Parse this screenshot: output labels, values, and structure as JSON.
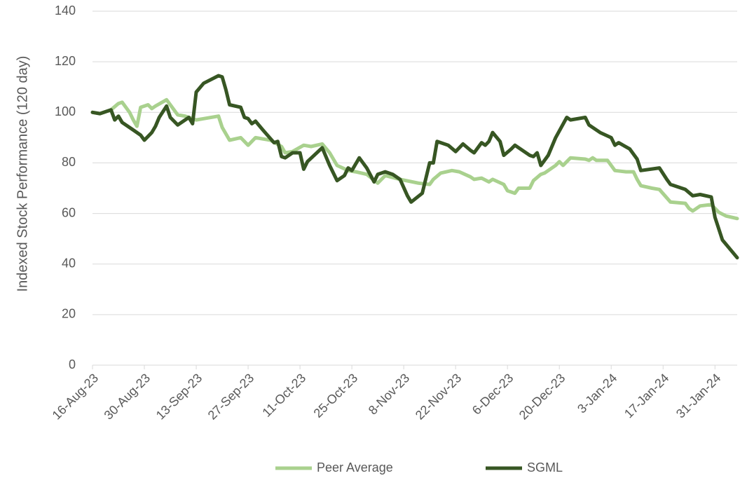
{
  "chart_data": {
    "type": "line",
    "y_label": "Indexed Stock Performance (120 day)",
    "ylim": [
      0,
      140
    ],
    "yticks": [
      0,
      20,
      40,
      60,
      80,
      100,
      120,
      140
    ],
    "grid": true,
    "xlim": [
      "2023-08-16",
      "2024-02-06"
    ],
    "xticks": [
      {
        "value": "2023-08-16",
        "label": "16-Aug-23"
      },
      {
        "value": "2023-08-30",
        "label": "30-Aug-23"
      },
      {
        "value": "2023-09-13",
        "label": "13-Sep-23"
      },
      {
        "value": "2023-09-27",
        "label": "27-Sep-23"
      },
      {
        "value": "2023-10-11",
        "label": "11-Oct-23"
      },
      {
        "value": "2023-10-25",
        "label": "25-Oct-23"
      },
      {
        "value": "2023-11-08",
        "label": "8-Nov-23"
      },
      {
        "value": "2023-11-22",
        "label": "22-Nov-23"
      },
      {
        "value": "2023-12-06",
        "label": "6-Dec-23"
      },
      {
        "value": "2023-12-20",
        "label": "20-Dec-23"
      },
      {
        "value": "2024-01-03",
        "label": "3-Jan-24"
      },
      {
        "value": "2024-01-17",
        "label": "17-Jan-24"
      },
      {
        "value": "2024-01-31",
        "label": "31-Jan-24"
      }
    ],
    "legend": "bottom",
    "series": [
      {
        "name": "Peer Average",
        "color": "#a9d18e",
        "x": [
          "2023-08-16",
          "2023-08-18",
          "2023-08-21",
          "2023-08-23",
          "2023-08-24",
          "2023-08-26",
          "2023-08-27",
          "2023-08-28",
          "2023-08-29",
          "2023-08-31",
          "2023-09-01",
          "2023-09-02",
          "2023-09-05",
          "2023-09-06",
          "2023-09-08",
          "2023-09-10",
          "2023-09-13",
          "2023-09-15",
          "2023-09-19",
          "2023-09-20",
          "2023-09-22",
          "2023-09-25",
          "2023-09-27",
          "2023-09-29",
          "2023-10-03",
          "2023-10-06",
          "2023-10-07",
          "2023-10-09",
          "2023-10-12",
          "2023-10-14",
          "2023-10-17",
          "2023-10-19",
          "2023-10-21",
          "2023-10-24",
          "2023-10-26",
          "2023-10-29",
          "2023-11-01",
          "2023-11-03",
          "2023-11-07",
          "2023-11-12",
          "2023-11-15",
          "2023-11-16",
          "2023-11-18",
          "2023-11-21",
          "2023-11-23",
          "2023-11-26",
          "2023-11-27",
          "2023-11-29",
          "2023-12-01",
          "2023-12-02",
          "2023-12-05",
          "2023-12-06",
          "2023-12-08",
          "2023-12-09",
          "2023-12-12",
          "2023-12-13",
          "2023-12-15",
          "2023-12-16",
          "2023-12-19",
          "2023-12-20",
          "2023-12-21",
          "2023-12-23",
          "2023-12-27",
          "2023-12-28",
          "2023-12-29",
          "2023-12-30",
          "2024-01-02",
          "2024-01-04",
          "2024-01-07",
          "2024-01-09",
          "2024-01-10",
          "2024-01-11",
          "2024-01-14",
          "2024-01-16",
          "2024-01-19",
          "2024-01-23",
          "2024-01-24",
          "2024-01-25",
          "2024-01-27",
          "2024-01-30",
          "2024-02-01",
          "2024-02-03",
          "2024-02-06"
        ],
        "values": [
          100,
          99.5,
          101,
          103.5,
          104,
          100,
          97,
          94.5,
          102,
          103,
          101.5,
          102.5,
          105,
          103,
          99,
          98.5,
          97,
          97.5,
          98.5,
          94,
          89,
          90,
          87,
          90,
          89,
          86.5,
          84,
          84.5,
          87,
          86.5,
          87.5,
          84,
          79,
          77,
          76.5,
          75.5,
          72,
          75,
          73.5,
          72,
          71.5,
          73.5,
          76,
          77,
          76.5,
          74.5,
          73.5,
          74,
          72.5,
          73.5,
          71.5,
          69,
          68,
          70,
          70,
          73,
          75.5,
          76,
          79,
          80.5,
          79,
          82,
          81.5,
          81,
          82,
          81,
          81,
          77,
          76.5,
          76.5,
          73.5,
          71,
          70,
          69.5,
          64.5,
          64,
          62,
          61,
          63,
          63.5,
          60.5,
          59,
          58
        ]
      },
      {
        "name": "SGML",
        "color": "#375623",
        "x": [
          "2023-08-16",
          "2023-08-18",
          "2023-08-21",
          "2023-08-22",
          "2023-08-23",
          "2023-08-24",
          "2023-08-27",
          "2023-08-29",
          "2023-08-30",
          "2023-09-01",
          "2023-09-02",
          "2023-09-03",
          "2023-09-05",
          "2023-09-06",
          "2023-09-08",
          "2023-09-11",
          "2023-09-12",
          "2023-09-13",
          "2023-09-15",
          "2023-09-19",
          "2023-09-20",
          "2023-09-21",
          "2023-09-22",
          "2023-09-25",
          "2023-09-26",
          "2023-09-27",
          "2023-09-28",
          "2023-09-29",
          "2023-10-01",
          "2023-10-04",
          "2023-10-05",
          "2023-10-06",
          "2023-10-07",
          "2023-10-09",
          "2023-10-11",
          "2023-10-12",
          "2023-10-13",
          "2023-10-17",
          "2023-10-19",
          "2023-10-21",
          "2023-10-23",
          "2023-10-24",
          "2023-10-25",
          "2023-10-27",
          "2023-10-29",
          "2023-10-31",
          "2023-11-01",
          "2023-11-03",
          "2023-11-05",
          "2023-11-07",
          "2023-11-09",
          "2023-11-10",
          "2023-11-13",
          "2023-11-15",
          "2023-11-16",
          "2023-11-17",
          "2023-11-20",
          "2023-11-22",
          "2023-11-24",
          "2023-11-26",
          "2023-11-27",
          "2023-11-29",
          "2023-11-30",
          "2023-12-01",
          "2023-12-02",
          "2023-12-04",
          "2023-12-05",
          "2023-12-07",
          "2023-12-08",
          "2023-12-12",
          "2023-12-13",
          "2023-12-14",
          "2023-12-15",
          "2023-12-17",
          "2023-12-19",
          "2023-12-22",
          "2023-12-23",
          "2023-12-27",
          "2023-12-28",
          "2023-12-31",
          "2024-01-03",
          "2024-01-04",
          "2024-01-05",
          "2024-01-08",
          "2024-01-10",
          "2024-01-11",
          "2024-01-16",
          "2024-01-18",
          "2024-01-19",
          "2024-01-23",
          "2024-01-25",
          "2024-01-27",
          "2024-01-30",
          "2024-01-31",
          "2024-02-02",
          "2024-02-06"
        ],
        "values": [
          100,
          99.5,
          101,
          97,
          98.5,
          96,
          93,
          91,
          89,
          92,
          94.5,
          98,
          102.5,
          98,
          95,
          98,
          95.5,
          108,
          111.5,
          114.5,
          114,
          109,
          103,
          102,
          98,
          97.5,
          95.5,
          96.5,
          93,
          88,
          88.5,
          82.5,
          82,
          84,
          84,
          77.5,
          80.5,
          86,
          79,
          73,
          75,
          78,
          77,
          82,
          78,
          72.5,
          75.5,
          76.5,
          75.5,
          73.5,
          67,
          64.5,
          68,
          80,
          80,
          88.5,
          87,
          84.5,
          87.5,
          85,
          84,
          88,
          87,
          88.5,
          92,
          88.5,
          83,
          85.5,
          87,
          83,
          82.5,
          84,
          79,
          83,
          90,
          98,
          97,
          98,
          95,
          92,
          90,
          87,
          88,
          85.5,
          81.5,
          77,
          78,
          73.5,
          71.5,
          69.5,
          67,
          67.5,
          66.5,
          58.5,
          49.5,
          42.5
        ]
      }
    ]
  }
}
